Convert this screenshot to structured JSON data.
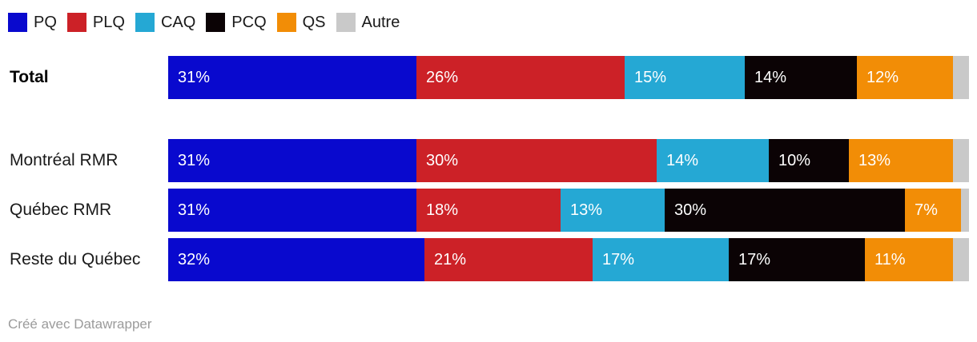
{
  "legend": {
    "items": [
      {
        "label": "PQ",
        "color": "#0909ce"
      },
      {
        "label": "PLQ",
        "color": "#cc2127"
      },
      {
        "label": "CAQ",
        "color": "#25a8d4"
      },
      {
        "label": "PCQ",
        "color": "#0b0305"
      },
      {
        "label": "QS",
        "color": "#f28d06"
      },
      {
        "label": "Autre",
        "color": "#c9c9c9"
      }
    ]
  },
  "chart_data": {
    "type": "bar",
    "stacked": true,
    "orientation": "horizontal",
    "unit": "%",
    "xlim": [
      0,
      100
    ],
    "grid": false,
    "legend_position": "top",
    "series_names": [
      "PQ",
      "PLQ",
      "CAQ",
      "PCQ",
      "QS",
      "Autre"
    ],
    "series_colors": [
      "#0909ce",
      "#cc2127",
      "#25a8d4",
      "#0b0305",
      "#f28d06",
      "#c9c9c9"
    ],
    "categories": [
      "Total",
      "Montréal RMR",
      "Québec RMR",
      "Reste du Québec"
    ],
    "rows": [
      {
        "label": "Total",
        "values": [
          31,
          26,
          15,
          14,
          12,
          2
        ],
        "value_labels": [
          "31%",
          "26%",
          "15%",
          "14%",
          "12%",
          ""
        ]
      },
      {
        "label": "Montréal RMR",
        "values": [
          31,
          30,
          14,
          10,
          13,
          2
        ],
        "value_labels": [
          "31%",
          "30%",
          "14%",
          "10%",
          "13%",
          ""
        ]
      },
      {
        "label": "Québec RMR",
        "values": [
          31,
          18,
          13,
          30,
          7,
          1
        ],
        "value_labels": [
          "31%",
          "18%",
          "13%",
          "30%",
          "7%",
          ""
        ]
      },
      {
        "label": "Reste du Québec",
        "values": [
          32,
          21,
          17,
          17,
          11,
          2
        ],
        "value_labels": [
          "32%",
          "21%",
          "17%",
          "17%",
          "11%",
          ""
        ]
      }
    ]
  },
  "footer": {
    "credit": "Créé avec Datawrapper"
  }
}
